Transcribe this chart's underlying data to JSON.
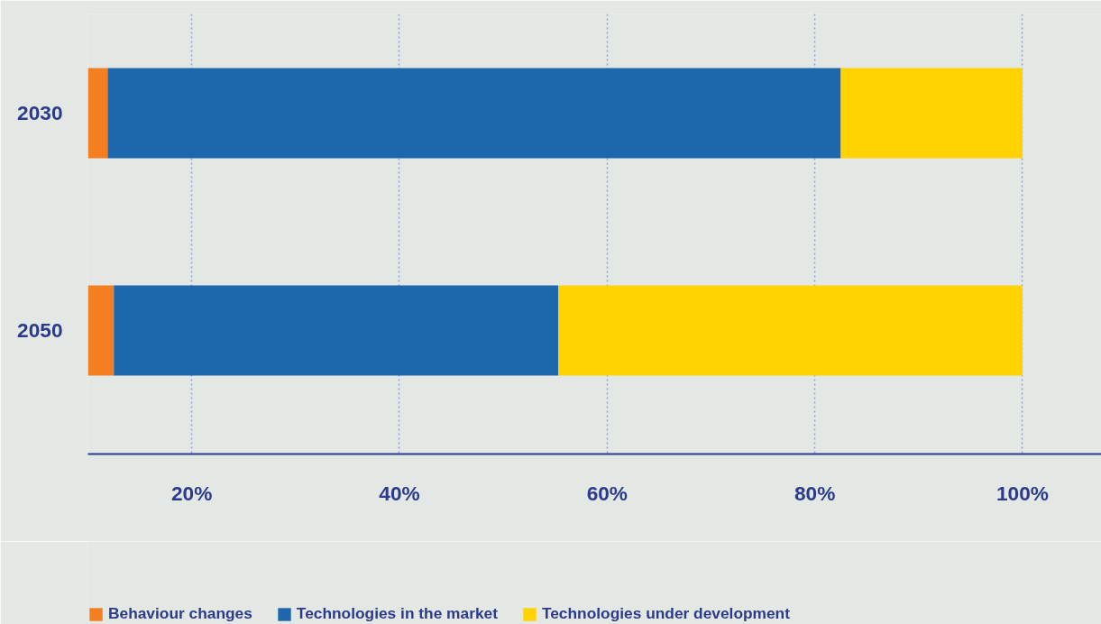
{
  "chart_data": {
    "type": "bar",
    "orientation": "horizontal",
    "categories": [
      "2030",
      "2050"
    ],
    "series": [
      {
        "name": "Behaviour changes",
        "color": "#f47f20",
        "base": [
          10,
          10
        ],
        "values": [
          1.9,
          2.5
        ]
      },
      {
        "name": "Technologies in the market",
        "color": "#1f67ac",
        "base": [
          11.9,
          12.5
        ],
        "values": [
          70.6,
          42.8
        ]
      },
      {
        "name": "Technologies under development",
        "color": "#ffd200",
        "base": [
          82.5,
          55.3
        ],
        "values": [
          17.5,
          44.7
        ]
      }
    ],
    "xlim": [
      10,
      107.6
    ],
    "xticks": [
      {
        "value": 20,
        "label": "20%"
      },
      {
        "value": 40,
        "label": "40%"
      },
      {
        "value": 60,
        "label": "60%"
      },
      {
        "value": 80,
        "label": "80%"
      },
      {
        "value": 100,
        "label": "100%"
      }
    ],
    "grid": "x",
    "legend": "bottom"
  }
}
